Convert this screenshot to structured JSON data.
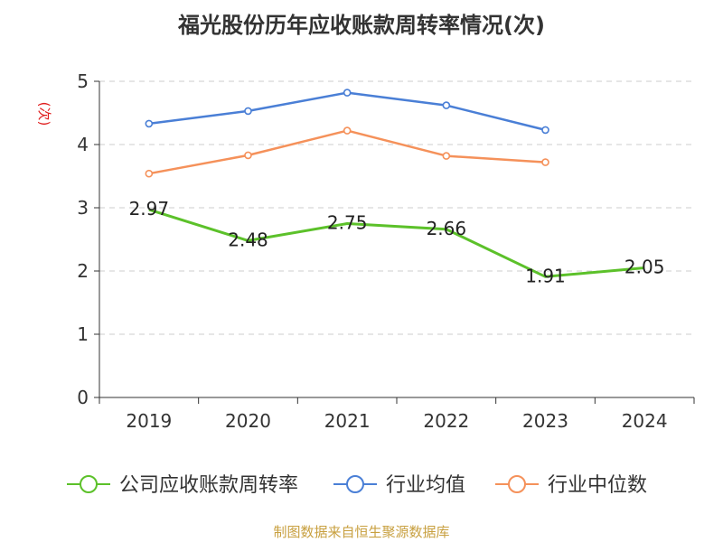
{
  "chart_data": {
    "type": "line",
    "title": "福光股份历年应收账款周转率情况(次)",
    "ylabel": "(次)",
    "xlabel": "",
    "categories": [
      "2019",
      "2020",
      "2021",
      "2022",
      "2023",
      "2024"
    ],
    "ylim": [
      0,
      5
    ],
    "yticks": [
      "0",
      "1",
      "2",
      "3",
      "4",
      "5"
    ],
    "grid": true,
    "legend_position": "bottom",
    "series": [
      {
        "name": "公司应收账款周转率",
        "color": "#5cc12a",
        "values": [
          2.97,
          2.48,
          2.75,
          2.66,
          1.91,
          2.05
        ],
        "labels": [
          "2.97",
          "2.48",
          "2.75",
          "2.66",
          "1.91",
          "2.05"
        ]
      },
      {
        "name": "行业均值",
        "color": "#4a7fd6",
        "values": [
          4.33,
          4.53,
          4.82,
          4.62,
          4.23,
          null
        ]
      },
      {
        "name": "行业中位数",
        "color": "#f5915a",
        "values": [
          3.54,
          3.83,
          4.22,
          3.82,
          3.72,
          null
        ]
      }
    ]
  },
  "colors": {
    "axis": "#333333",
    "grid": "#cccccc",
    "ylabel": "#e02020",
    "source": "#c8a040"
  },
  "source": "制图数据来自恒生聚源数据库"
}
